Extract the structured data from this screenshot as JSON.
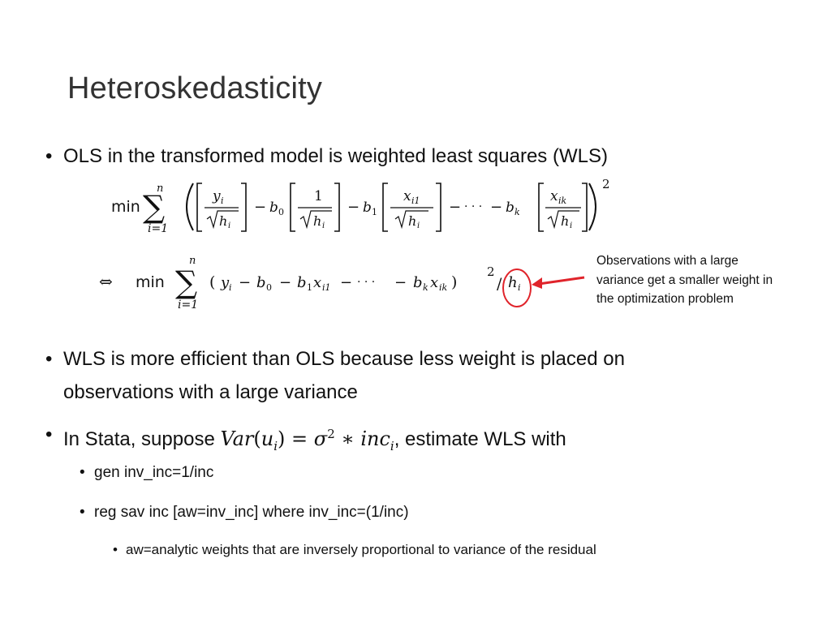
{
  "slide": {
    "title": "Heteroskedasticity",
    "bullets": {
      "b1": "OLS in the transformed model is weighted least squares (WLS)",
      "b2_line1": "WLS is more efficient than OLS because less weight is placed on",
      "b2_line2": "observations with a large variance",
      "b3_prefix": "In Stata, suppose ",
      "b3_math_var": "Var",
      "b3_math_open": "(",
      "b3_math_u": "u",
      "b3_math_i": "i",
      "b3_math_close": ")",
      "b3_math_eq": " = ",
      "b3_math_sigma": "σ",
      "b3_math_two": "2",
      "b3_math_star": " ∗ ",
      "b3_math_inc": "inc",
      "b3_math_i2": "i",
      "b3_suffix": ", estimate WLS with",
      "sub1": "gen inv_inc=1/inc",
      "sub2": "reg sav inc [aw=inv_inc]  where inv_inc=(1/inc)",
      "subsub1": "aw=analytic weights that are inversely proportional to variance of the residual"
    },
    "annotation": {
      "line1": "Observations with a large",
      "line2": "variance get a smaller weight in",
      "line3": "the optimization problem"
    },
    "bullet_char": "•",
    "colors": {
      "title": "#333333",
      "arrow": "#e0242b",
      "text": "#111111"
    },
    "formula1": {
      "min": "min",
      "sum_top": "n",
      "sum_bottom": "i=1",
      "y": "y",
      "i": "i",
      "h": "h",
      "minus": "−",
      "b": "b",
      "zero": "0",
      "one": "1",
      "x": "x",
      "i1": "i1",
      "ik": "ik",
      "k": "k",
      "dots": "· · ·",
      "square": "2"
    },
    "formula2": {
      "iff": "⇔",
      "min": "min",
      "sum_top": "n",
      "sum_bottom": "i=1",
      "body": "(y",
      "square": "2",
      "h": "h",
      "i": "i"
    }
  }
}
